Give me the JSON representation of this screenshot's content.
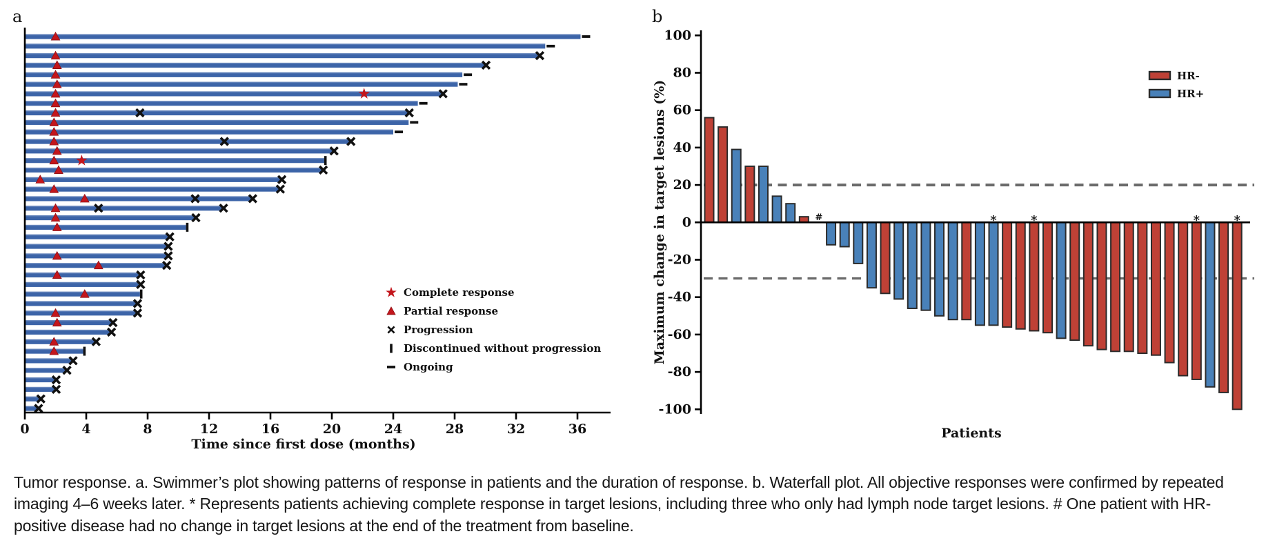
{
  "figure": {
    "caption": "Tumor response. a. Swimmer’s plot showing patterns of response in patients and the duration of response. b. Waterfall plot. All objective responses were confirmed by repeated imaging 4–6 weeks later. * Represents patients achieving complete response in target lesions, including three who only had lymph node target lesions. # One patient with HR-positive disease had no change in target lesions at the end of the treatment from baseline."
  },
  "colors": {
    "swimmer_bar": "#3c64a8",
    "swimmer_bar_light": "#7c97c6",
    "response_red": "#c3161c",
    "marker_black": "#111111",
    "hr_neg": "#bf4136",
    "hr_pos": "#4981b9",
    "bar_border": "#2b2b2b",
    "dashed_line": "#6b6b6b",
    "axis": "#000000"
  },
  "chart_data": [
    {
      "type": "bar",
      "panel": "a",
      "orientation": "horizontal-swimmer",
      "xlabel": "Time since first dose (months)",
      "x_ticks": [
        0,
        4,
        8,
        12,
        16,
        20,
        24,
        28,
        32,
        36
      ],
      "xlim": [
        0,
        38
      ],
      "grid": false,
      "legend_position": "right-middle",
      "legend": [
        {
          "symbol": "star",
          "label": "Complete response"
        },
        {
          "symbol": "triangle",
          "label": "Partial response"
        },
        {
          "symbol": "x",
          "label": "Progression"
        },
        {
          "symbol": "vbar",
          "label": "Discontinued without progression"
        },
        {
          "symbol": "dash",
          "label": "Ongoing"
        }
      ],
      "patients": [
        {
          "duration_months": 36.2,
          "end": "ongoing",
          "partial_response_month": 2.0
        },
        {
          "duration_months": 33.9,
          "end": "ongoing"
        },
        {
          "duration_months": 33.5,
          "end": "progression",
          "partial_response_month": 2.0
        },
        {
          "duration_months": 30.0,
          "end": "progression",
          "partial_response_month": 2.1
        },
        {
          "duration_months": 28.5,
          "end": "ongoing",
          "partial_response_month": 2.0
        },
        {
          "duration_months": 28.2,
          "end": "ongoing",
          "partial_response_month": 2.1
        },
        {
          "duration_months": 27.2,
          "end": "progression",
          "partial_response_month": 2.0,
          "complete_response_month": 22.1
        },
        {
          "duration_months": 25.6,
          "end": "ongoing",
          "partial_response_month": 2.0
        },
        {
          "duration_months": 25.0,
          "end": "progression",
          "partial_response_month": 2.0,
          "progression_month": 7.5
        },
        {
          "duration_months": 25.0,
          "end": "ongoing",
          "partial_response_month": 1.9
        },
        {
          "duration_months": 24.0,
          "end": "ongoing",
          "partial_response_month": 1.9
        },
        {
          "duration_months": 21.2,
          "end": "progression",
          "partial_response_month": 1.9,
          "progression_month": 13.0
        },
        {
          "duration_months": 20.1,
          "end": "progression",
          "partial_response_month": 2.1
        },
        {
          "duration_months": 19.5,
          "end": "discontinued",
          "partial_response_month": 1.9,
          "complete_response_month": 3.7
        },
        {
          "duration_months": 19.4,
          "end": "progression",
          "partial_response_month": 2.2
        },
        {
          "duration_months": 16.7,
          "end": "progression",
          "partial_response_month": 1.0
        },
        {
          "duration_months": 16.6,
          "end": "progression",
          "partial_response_month": 1.9
        },
        {
          "duration_months": 14.8,
          "end": "progression",
          "partial_response_month": 3.9,
          "progression_month": 11.1
        },
        {
          "duration_months": 12.9,
          "end": "progression",
          "partial_response_month": 2.0,
          "progression_month": 4.8
        },
        {
          "duration_months": 11.1,
          "end": "progression",
          "partial_response_month": 2.0
        },
        {
          "duration_months": 10.5,
          "end": "discontinued",
          "partial_response_month": 2.1
        },
        {
          "duration_months": 9.4,
          "end": "progression"
        },
        {
          "duration_months": 9.3,
          "end": "progression"
        },
        {
          "duration_months": 9.3,
          "end": "progression",
          "partial_response_month": 2.1
        },
        {
          "duration_months": 9.2,
          "end": "progression",
          "partial_response_month": 4.8
        },
        {
          "duration_months": 7.5,
          "end": "progression",
          "partial_response_month": 2.1
        },
        {
          "duration_months": 7.5,
          "end": "progression"
        },
        {
          "duration_months": 7.5,
          "end": "discontinued",
          "partial_response_month": 3.9
        },
        {
          "duration_months": 7.3,
          "end": "progression"
        },
        {
          "duration_months": 7.3,
          "end": "progression",
          "partial_response_month": 2.0
        },
        {
          "duration_months": 5.7,
          "end": "progression",
          "partial_response_month": 2.1
        },
        {
          "duration_months": 5.6,
          "end": "progression"
        },
        {
          "duration_months": 4.6,
          "end": "progression",
          "partial_response_month": 1.9
        },
        {
          "duration_months": 3.8,
          "end": "discontinued",
          "partial_response_month": 1.9
        },
        {
          "duration_months": 3.1,
          "end": "progression"
        },
        {
          "duration_months": 2.7,
          "end": "progression"
        },
        {
          "duration_months": 2.0,
          "end": "progression"
        },
        {
          "duration_months": 2.0,
          "end": "progression"
        },
        {
          "duration_months": 1.0,
          "end": "progression"
        },
        {
          "duration_months": 0.85,
          "end": "progression"
        }
      ]
    },
    {
      "type": "bar",
      "panel": "b",
      "orientation": "vertical-waterfall",
      "ylabel": "Maximum change in target lesions (%)",
      "xlabel": "Patients",
      "ylim": [
        -100,
        100
      ],
      "y_ticks": [
        100,
        80,
        60,
        40,
        20,
        0,
        -20,
        -40,
        -60,
        -80,
        -100
      ],
      "reference_lines": [
        20,
        -30
      ],
      "grid": false,
      "legend_position": "top-right",
      "legend": [
        {
          "label": "HR-",
          "color_key": "hr_neg"
        },
        {
          "label": "HR+",
          "color_key": "hr_pos"
        }
      ],
      "values": [
        {
          "value": 56,
          "group": "HR-"
        },
        {
          "value": 51,
          "group": "HR-"
        },
        {
          "value": 39,
          "group": "HR+"
        },
        {
          "value": 30,
          "group": "HR-"
        },
        {
          "value": 30,
          "group": "HR+"
        },
        {
          "value": 14,
          "group": "HR+"
        },
        {
          "value": 10,
          "group": "HR+"
        },
        {
          "value": 3,
          "group": "HR-"
        },
        {
          "value": 0,
          "group": "HR+",
          "flag": "#"
        },
        {
          "value": -12,
          "group": "HR+"
        },
        {
          "value": -13,
          "group": "HR+"
        },
        {
          "value": -22,
          "group": "HR+"
        },
        {
          "value": -35,
          "group": "HR+"
        },
        {
          "value": -38,
          "group": "HR-"
        },
        {
          "value": -41,
          "group": "HR+"
        },
        {
          "value": -46,
          "group": "HR+"
        },
        {
          "value": -47,
          "group": "HR+"
        },
        {
          "value": -50,
          "group": "HR+"
        },
        {
          "value": -52,
          "group": "HR+"
        },
        {
          "value": -52,
          "group": "HR-"
        },
        {
          "value": -55,
          "group": "HR+"
        },
        {
          "value": -55,
          "group": "HR+",
          "flag": "*"
        },
        {
          "value": -56,
          "group": "HR-"
        },
        {
          "value": -57,
          "group": "HR-"
        },
        {
          "value": -58,
          "group": "HR-",
          "flag": "*"
        },
        {
          "value": -59,
          "group": "HR-"
        },
        {
          "value": -62,
          "group": "HR+"
        },
        {
          "value": -63,
          "group": "HR-"
        },
        {
          "value": -66,
          "group": "HR-"
        },
        {
          "value": -68,
          "group": "HR-"
        },
        {
          "value": -69,
          "group": "HR-"
        },
        {
          "value": -69,
          "group": "HR-"
        },
        {
          "value": -70,
          "group": "HR-"
        },
        {
          "value": -71,
          "group": "HR-"
        },
        {
          "value": -75,
          "group": "HR-"
        },
        {
          "value": -82,
          "group": "HR-"
        },
        {
          "value": -84,
          "group": "HR-",
          "flag": "*"
        },
        {
          "value": -88,
          "group": "HR+"
        },
        {
          "value": -91,
          "group": "HR-"
        },
        {
          "value": -100,
          "group": "HR-",
          "flag": "*"
        }
      ]
    }
  ]
}
